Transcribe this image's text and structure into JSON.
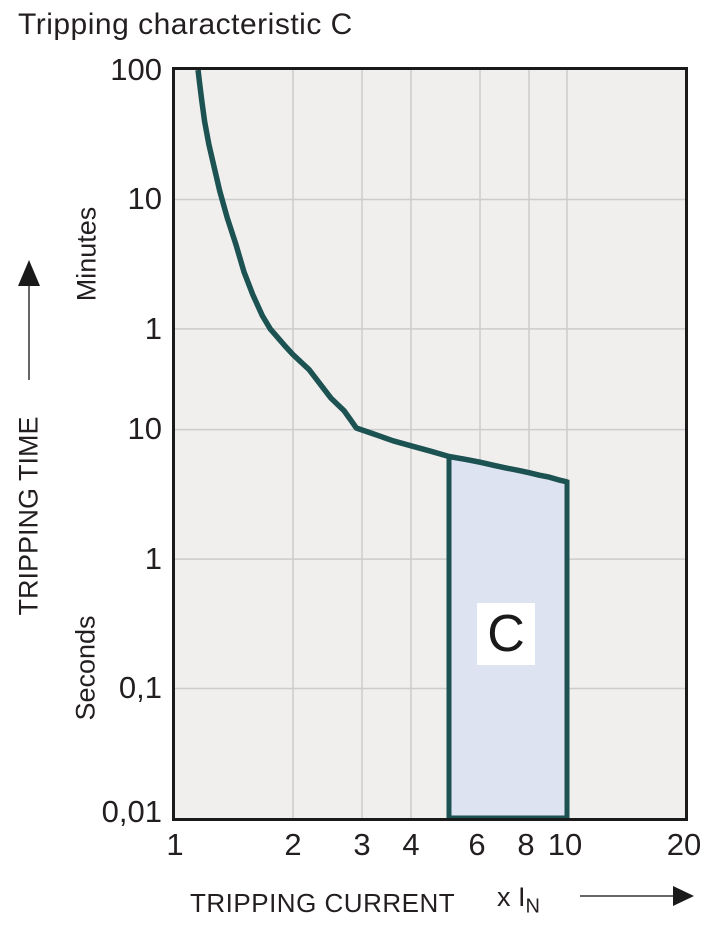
{
  "title": "Tripping characteristic C",
  "chart_data": {
    "type": "line",
    "title": "Tripping characteristic C",
    "xlabel": "TRIPPING CURRENT",
    "xunit_prefix": "x I",
    "xunit_sub": "N",
    "ylabel": "TRIPPING TIME",
    "y_units": [
      "Minutes",
      "Seconds"
    ],
    "x_scale": "log",
    "y_scale": "log",
    "xlim": [
      1,
      20
    ],
    "ylim_seconds": [
      0.01,
      6000
    ],
    "grid": "on",
    "legend": "none",
    "x_ticks": [
      {
        "value": 1,
        "label": "1"
      },
      {
        "value": 2,
        "label": "2"
      },
      {
        "value": 3,
        "label": "3"
      },
      {
        "value": 4,
        "label": "4"
      },
      {
        "value": 6,
        "label": "6"
      },
      {
        "value": 8,
        "label": "8"
      },
      {
        "value": 10,
        "label": "10"
      },
      {
        "value": 20,
        "label": "20"
      }
    ],
    "y_ticks": [
      {
        "label": "100",
        "unit": "minutes",
        "seconds": 6000
      },
      {
        "label": "10",
        "unit": "minutes",
        "seconds": 600
      },
      {
        "label": "1",
        "unit": "minutes",
        "seconds": 60
      },
      {
        "label": "10",
        "unit": "seconds",
        "seconds": 10
      },
      {
        "label": "1",
        "unit": "seconds",
        "seconds": 1
      },
      {
        "label": "0,1",
        "unit": "seconds",
        "seconds": 0.1
      },
      {
        "label": "0,01",
        "unit": "seconds",
        "seconds": 0.01
      }
    ],
    "x_gridlines": [
      2,
      3,
      4,
      6,
      8,
      10
    ],
    "y_gridlines_seconds": [
      600,
      60,
      10,
      1,
      0.1
    ],
    "curve": {
      "name": "C tripping characteristic (current multiple vs time in seconds)",
      "points": [
        [
          1.145,
          6000
        ],
        [
          1.155,
          4800
        ],
        [
          1.17,
          3500
        ],
        [
          1.19,
          2400
        ],
        [
          1.22,
          1600
        ],
        [
          1.26,
          1050
        ],
        [
          1.3,
          700
        ],
        [
          1.36,
          430
        ],
        [
          1.43,
          270
        ],
        [
          1.5,
          165
        ],
        [
          1.58,
          110
        ],
        [
          1.67,
          76
        ],
        [
          1.75,
          60
        ],
        [
          1.9,
          45
        ],
        [
          2.0,
          38
        ],
        [
          2.2,
          29
        ],
        [
          2.5,
          17.5
        ],
        [
          2.7,
          14
        ],
        [
          2.8,
          12
        ],
        [
          2.9,
          10.3
        ],
        [
          3.2,
          9.3
        ],
        [
          3.6,
          8.2
        ],
        [
          4.0,
          7.5
        ],
        [
          4.5,
          6.8
        ],
        [
          5.0,
          6.2
        ],
        [
          5.5,
          5.9
        ],
        [
          6.0,
          5.6
        ],
        [
          6.5,
          5.3
        ],
        [
          7.0,
          5.05
        ],
        [
          7.5,
          4.85
        ],
        [
          8.0,
          4.65
        ],
        [
          8.5,
          4.45
        ],
        [
          9.0,
          4.3
        ],
        [
          9.5,
          4.1
        ],
        [
          10.0,
          3.95
        ]
      ]
    },
    "region": {
      "label": "C",
      "x_range": [
        5,
        10
      ],
      "t_bottom_seconds": 0.01,
      "fill": "#dde3f1"
    },
    "colors": {
      "curve": "#1d5252",
      "region_fill": "#dde3f1",
      "plot_bg": "#f0efee",
      "grid": "#cccccc",
      "border": "#1a1a1a",
      "text": "#231f20",
      "arrow_line": "#666666",
      "arrow_head": "#1a1a1a"
    }
  }
}
